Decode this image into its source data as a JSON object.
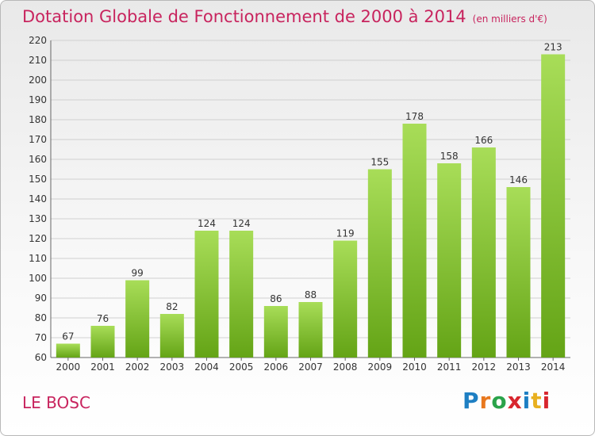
{
  "title": "Dotation Globale de Fonctionnement de 2000 à 2014",
  "unit": "(en milliers d'€)",
  "commune": "LE BOSC",
  "logo": {
    "text": "Proxiti",
    "colors": [
      "#1e7fc3",
      "#e8781e",
      "#2aa34a",
      "#d8262e",
      "#1e7fc3",
      "#e8b020",
      "#d8262e"
    ]
  },
  "colors": {
    "title": "#c8245e",
    "bar_top": "#a8dd58",
    "bar_bottom": "#64a416",
    "grid": "#d0d0d0"
  },
  "chart_data": {
    "type": "bar",
    "categories": [
      "2000",
      "2001",
      "2002",
      "2003",
      "2004",
      "2005",
      "2006",
      "2007",
      "2008",
      "2009",
      "2010",
      "2011",
      "2012",
      "2013",
      "2014"
    ],
    "values": [
      67,
      76,
      99,
      82,
      124,
      124,
      86,
      88,
      119,
      155,
      178,
      158,
      166,
      146,
      213
    ],
    "ylim": [
      60,
      220
    ],
    "yticks": [
      60,
      70,
      80,
      90,
      100,
      110,
      120,
      130,
      140,
      150,
      160,
      170,
      180,
      190,
      200,
      210,
      220
    ],
    "grid": true
  }
}
